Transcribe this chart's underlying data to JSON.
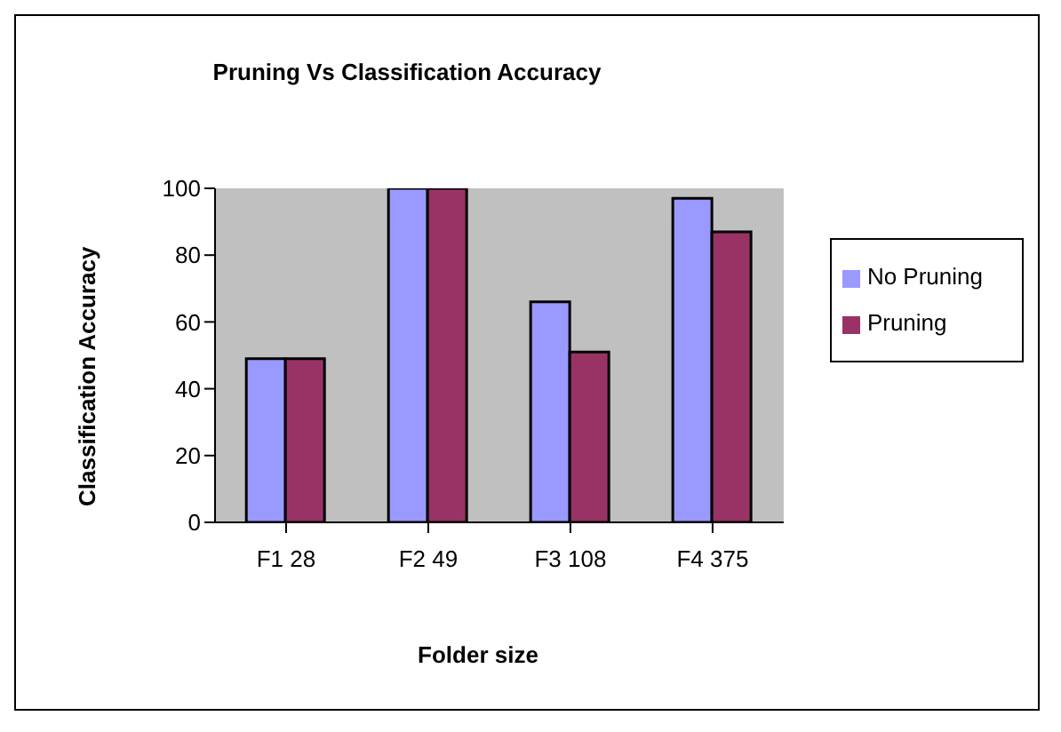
{
  "chart_data": {
    "type": "bar",
    "title": "Pruning Vs Classification Accuracy",
    "xlabel": "Folder size",
    "ylabel": "Classification Accuracy",
    "categories": [
      "F1 28",
      "F2 49",
      "F3 108",
      "F4 375"
    ],
    "series": [
      {
        "name": "No Pruning",
        "color": "#9999ff",
        "values": [
          49,
          100,
          66,
          97
        ]
      },
      {
        "name": "Pruning",
        "color": "#993366",
        "values": [
          49,
          100,
          51,
          87
        ]
      }
    ],
    "ylim": [
      0,
      100
    ],
    "yticks": [
      0,
      20,
      40,
      60,
      80,
      100
    ],
    "grid": false,
    "legend": "right"
  }
}
